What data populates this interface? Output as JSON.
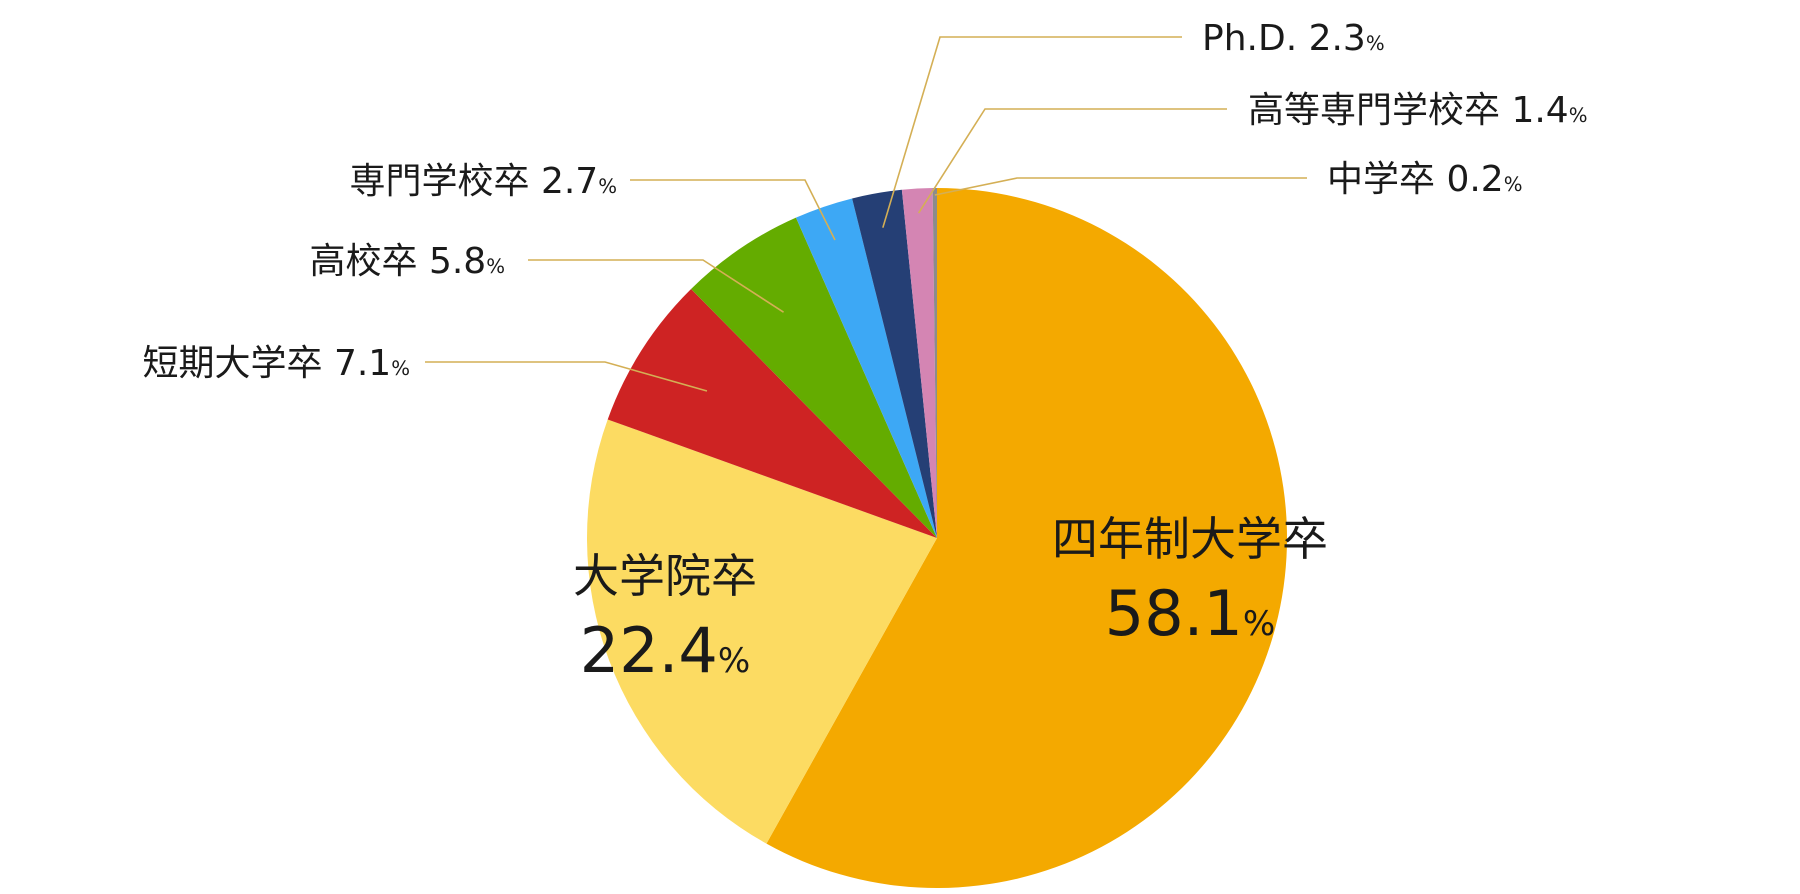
{
  "chart_data": {
    "type": "pie",
    "start": "12 o'clock",
    "direction": "clockwise",
    "percent_symbol": "%",
    "slices": [
      {
        "label": "四年制大学卒",
        "value": 58.1,
        "display": "58.1",
        "color": "#F4A900",
        "label_placement": "inside"
      },
      {
        "label": "大学院卒",
        "value": 22.4,
        "display": "22.4",
        "color": "#FCDB62",
        "label_placement": "inside"
      },
      {
        "label": "短期大学卒",
        "value": 7.1,
        "display": "7.1",
        "color": "#CE2323",
        "label_placement": "outside"
      },
      {
        "label": "高校卒",
        "value": 5.8,
        "display": "5.8",
        "color": "#64AC00",
        "label_placement": "outside"
      },
      {
        "label": "専門学校卒",
        "value": 2.7,
        "display": "2.7",
        "color": "#3DA8F5",
        "label_placement": "outside"
      },
      {
        "label": "Ph.D.",
        "value": 2.3,
        "display": "2.3",
        "color": "#253F75",
        "label_placement": "outside"
      },
      {
        "label": "高等専門学校卒",
        "value": 1.4,
        "display": "1.4",
        "color": "#D485B3",
        "label_placement": "outside"
      },
      {
        "label": "中学卒",
        "value": 0.2,
        "display": "0.2",
        "color": "#8C8C8C",
        "label_placement": "outside"
      }
    ],
    "leader_line_color": "#D4AF55"
  }
}
